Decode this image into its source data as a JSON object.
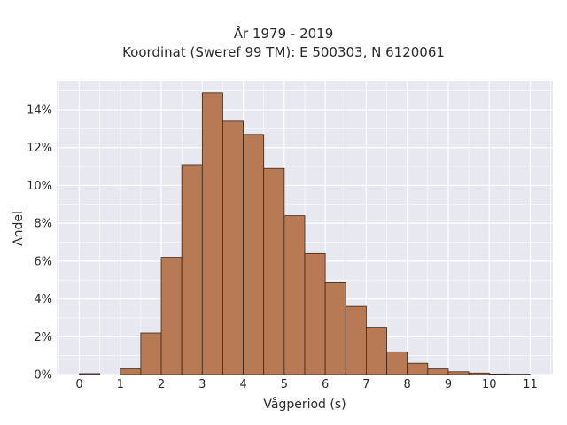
{
  "chart_data": {
    "type": "bar",
    "title_lines": [
      "År 1979 - 2019",
      "Koordinat (Sweref 99 TM): E 500303, N 6120061"
    ],
    "xlabel": "Vågperiod (s)",
    "ylabel": "Andel",
    "bin_width": 0.5,
    "bin_starts": [
      0,
      0.5,
      1,
      1.5,
      2,
      2.5,
      3,
      3.5,
      4,
      4.5,
      5,
      5.5,
      6,
      6.5,
      7,
      7.5,
      8,
      8.5,
      9,
      9.5,
      10,
      10.5
    ],
    "values": [
      0.05,
      0,
      0.3,
      2.2,
      6.2,
      11.1,
      14.9,
      13.4,
      12.7,
      10.9,
      8.4,
      6.4,
      4.85,
      3.6,
      2.5,
      1.2,
      0.6,
      0.3,
      0.15,
      0.08,
      0.03,
      0.02
    ],
    "xticks": [
      0,
      1,
      2,
      3,
      4,
      5,
      6,
      7,
      8,
      9,
      10,
      11
    ],
    "yticks": [
      0,
      2,
      4,
      6,
      8,
      10,
      12,
      14
    ],
    "ytick_suffix": "%",
    "xlim": [
      -0.55,
      11.55
    ],
    "ylim": [
      0,
      15.5
    ],
    "grid": true,
    "bar_color": "#b87a55",
    "bar_edge_color": "#3a2618",
    "plot_background": "#e8e8f0",
    "grid_color": "#ffffff"
  }
}
